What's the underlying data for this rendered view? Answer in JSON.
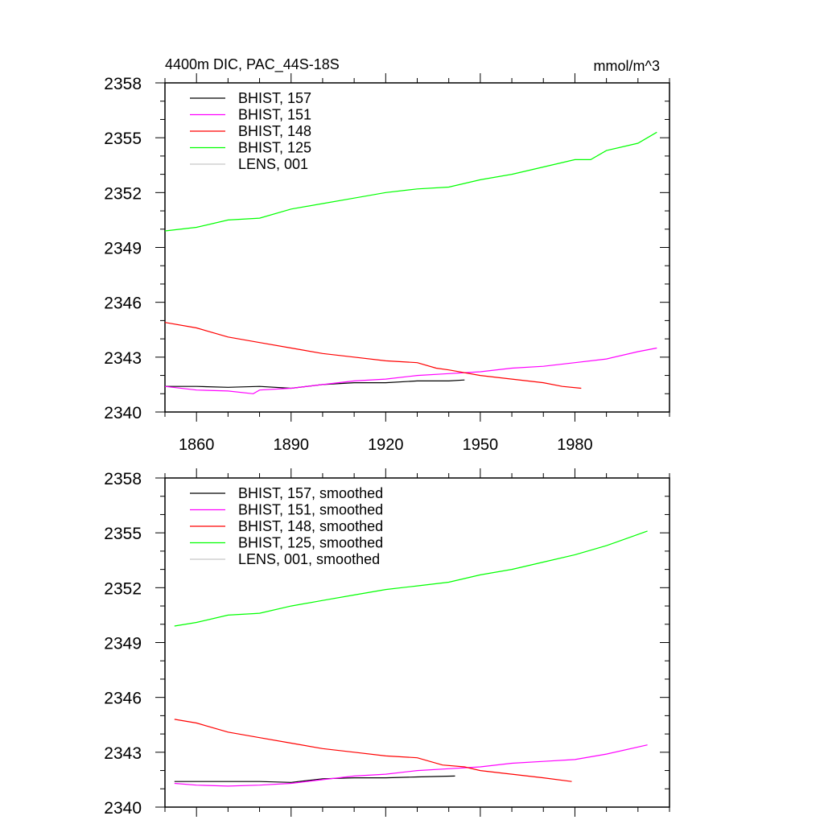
{
  "chart_data": [
    {
      "type": "line",
      "title": "4400m DIC, PAC_44S-18S",
      "units": "mmol/m^3",
      "xlim": [
        1850,
        2010
      ],
      "ylim": [
        2340,
        2358
      ],
      "xticks": [
        1860,
        1890,
        1920,
        1950,
        1980
      ],
      "xtick_labels": [
        "1860",
        "1890",
        "1920",
        "1950",
        "1980"
      ],
      "yticks": [
        2340,
        2343,
        2346,
        2349,
        2352,
        2355,
        2358
      ],
      "ytick_labels": [
        "2340",
        "2343",
        "2346",
        "2349",
        "2352",
        "2355",
        "2358"
      ],
      "legend_position": "top-left",
      "series": [
        {
          "name": "BHIST, 157",
          "color": "#000000",
          "x": [
            1850,
            1860,
            1870,
            1880,
            1890,
            1900,
            1910,
            1920,
            1930,
            1940,
            1945
          ],
          "y": [
            2341.4,
            2341.4,
            2341.35,
            2341.4,
            2341.3,
            2341.5,
            2341.6,
            2341.6,
            2341.7,
            2341.7,
            2341.75
          ]
        },
        {
          "name": "BHIST, 151",
          "color": "#ff00ff",
          "x": [
            1850,
            1860,
            1870,
            1878,
            1880,
            1890,
            1900,
            1910,
            1920,
            1930,
            1940,
            1950,
            1960,
            1970,
            1980,
            1990,
            2000,
            2006
          ],
          "y": [
            2341.4,
            2341.2,
            2341.15,
            2341.0,
            2341.2,
            2341.3,
            2341.5,
            2341.7,
            2341.8,
            2342.0,
            2342.1,
            2342.2,
            2342.4,
            2342.5,
            2342.7,
            2342.9,
            2343.3,
            2343.5
          ]
        },
        {
          "name": "BHIST, 148",
          "color": "#ff0000",
          "x": [
            1850,
            1860,
            1870,
            1880,
            1890,
            1900,
            1910,
            1920,
            1930,
            1936,
            1940,
            1950,
            1960,
            1970,
            1976,
            1982
          ],
          "y": [
            2344.9,
            2344.6,
            2344.1,
            2343.8,
            2343.5,
            2343.2,
            2343.0,
            2342.8,
            2342.7,
            2342.4,
            2342.3,
            2342.0,
            2341.8,
            2341.6,
            2341.4,
            2341.3
          ]
        },
        {
          "name": "BHIST, 125",
          "color": "#00ff00",
          "x": [
            1850,
            1860,
            1870,
            1880,
            1890,
            1900,
            1910,
            1920,
            1930,
            1940,
            1950,
            1960,
            1970,
            1980,
            1985,
            1990,
            2000,
            2006
          ],
          "y": [
            2349.9,
            2350.1,
            2350.5,
            2350.6,
            2351.1,
            2351.4,
            2351.7,
            2352.0,
            2352.2,
            2352.3,
            2352.7,
            2353.0,
            2353.4,
            2353.8,
            2353.8,
            2354.3,
            2354.7,
            2355.3
          ]
        },
        {
          "name": "LENS, 001",
          "color": "#c8c8c8",
          "x": [],
          "y": []
        }
      ]
    },
    {
      "type": "line",
      "title": "",
      "xlim": [
        1850,
        2010
      ],
      "ylim": [
        2340,
        2358
      ],
      "xticks": [
        1860,
        1890,
        1920,
        1950,
        1980
      ],
      "xtick_labels": [],
      "yticks": [
        2340,
        2343,
        2346,
        2349,
        2352,
        2355,
        2358
      ],
      "ytick_labels": [
        "2340",
        "2343",
        "2346",
        "2349",
        "2352",
        "2355",
        "2358"
      ],
      "legend_position": "top-left",
      "series": [
        {
          "name": "BHIST, 157, smoothed",
          "color": "#000000",
          "x": [
            1853,
            1860,
            1870,
            1880,
            1890,
            1900,
            1910,
            1920,
            1930,
            1942
          ],
          "y": [
            2341.4,
            2341.4,
            2341.4,
            2341.4,
            2341.35,
            2341.55,
            2341.6,
            2341.6,
            2341.65,
            2341.7
          ]
        },
        {
          "name": "BHIST, 151, smoothed",
          "color": "#ff00ff",
          "x": [
            1853,
            1860,
            1870,
            1880,
            1890,
            1900,
            1910,
            1920,
            1930,
            1940,
            1950,
            1960,
            1970,
            1980,
            1990,
            2003
          ],
          "y": [
            2341.3,
            2341.2,
            2341.15,
            2341.2,
            2341.3,
            2341.5,
            2341.7,
            2341.8,
            2342.0,
            2342.1,
            2342.2,
            2342.4,
            2342.5,
            2342.6,
            2342.9,
            2343.4
          ]
        },
        {
          "name": "BHIST, 148, smoothed",
          "color": "#ff0000",
          "x": [
            1853,
            1860,
            1870,
            1880,
            1890,
            1900,
            1910,
            1920,
            1930,
            1938,
            1945,
            1950,
            1960,
            1970,
            1979
          ],
          "y": [
            2344.8,
            2344.6,
            2344.1,
            2343.8,
            2343.5,
            2343.2,
            2343.0,
            2342.8,
            2342.7,
            2342.3,
            2342.2,
            2342.0,
            2341.8,
            2341.6,
            2341.4
          ]
        },
        {
          "name": "BHIST, 125, smoothed",
          "color": "#00ff00",
          "x": [
            1853,
            1860,
            1870,
            1880,
            1890,
            1900,
            1910,
            1920,
            1930,
            1940,
            1950,
            1960,
            1970,
            1980,
            1990,
            2003
          ],
          "y": [
            2349.9,
            2350.1,
            2350.5,
            2350.6,
            2351.0,
            2351.3,
            2351.6,
            2351.9,
            2352.1,
            2352.3,
            2352.7,
            2353.0,
            2353.4,
            2353.8,
            2354.3,
            2355.1
          ]
        },
        {
          "name": "LENS, 001, smoothed",
          "color": "#c8c8c8",
          "x": [],
          "y": []
        }
      ]
    }
  ]
}
